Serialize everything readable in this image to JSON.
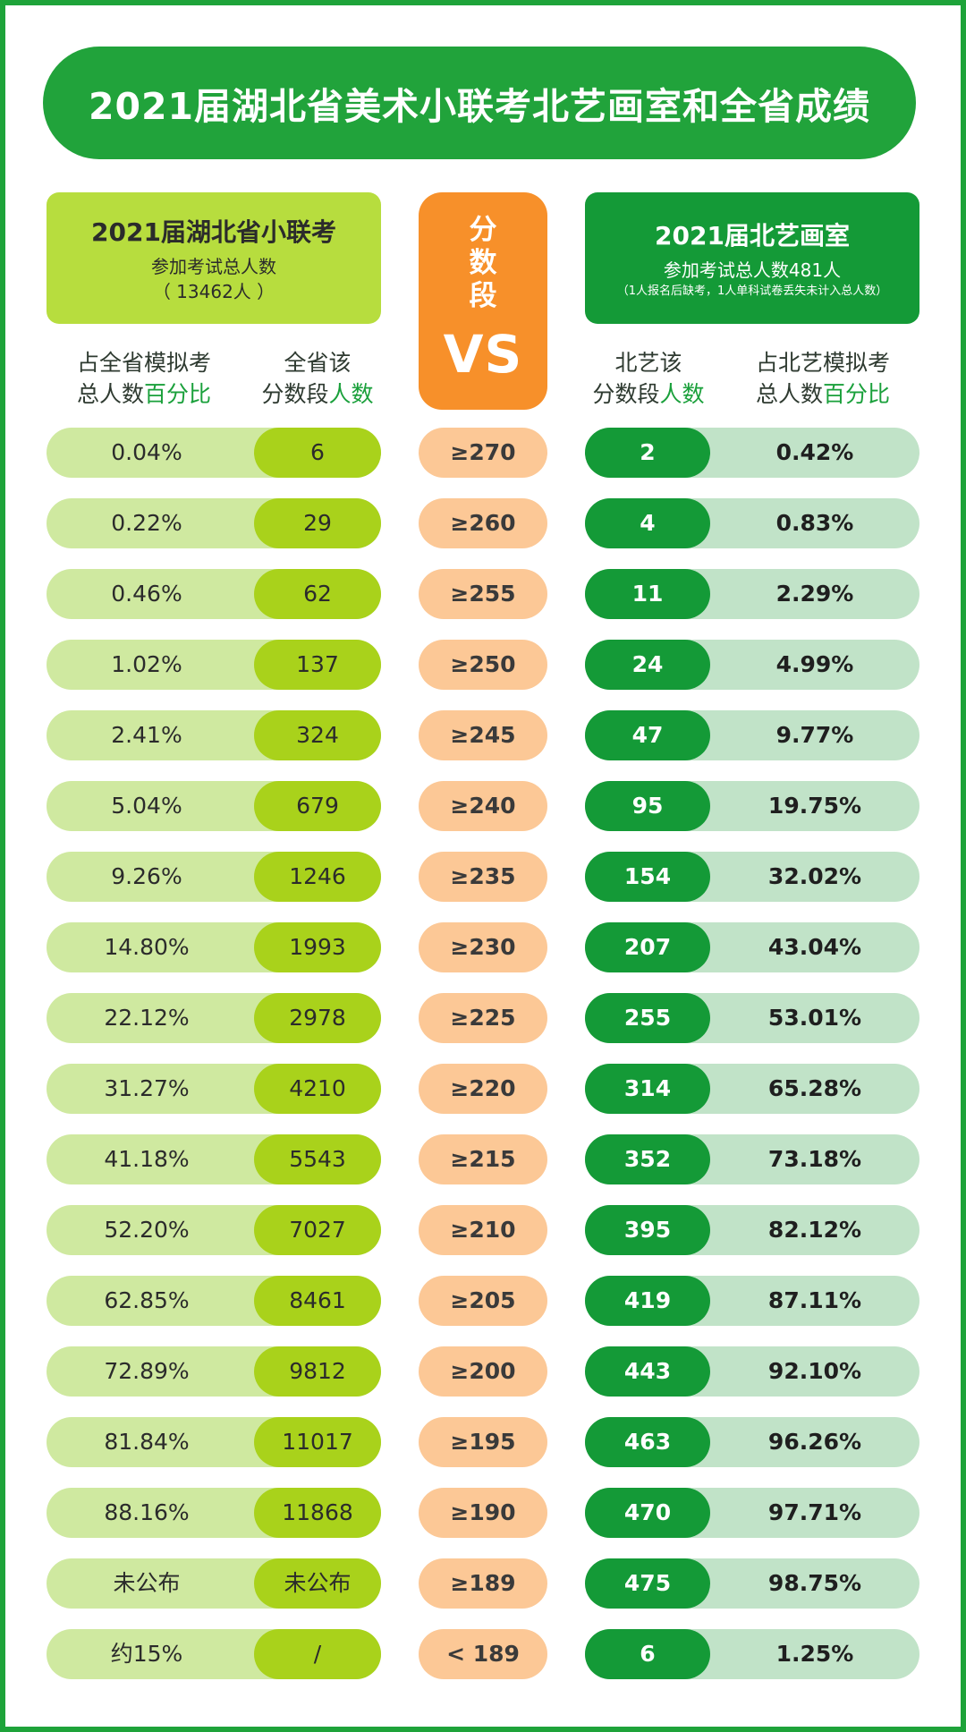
{
  "title": "2021届湖北省美术小联考北艺画室和全省成绩",
  "left_header": {
    "title": "2021届湖北省小联考",
    "subtitle": "参加考试总人数",
    "total": "（ 13462人 ）"
  },
  "middle_header": {
    "label": "分数段",
    "vs": "VS"
  },
  "right_header": {
    "title": "2021届北艺画室",
    "subtitle": "参加考试总人数481人",
    "note": "（1人报名后缺考，1人单科试卷丢失未计入总人数）"
  },
  "columns": {
    "left_pct": {
      "line1": "占全省模拟考",
      "line2a": "总人数",
      "line2b": "百分比"
    },
    "left_cnt": {
      "line1": "全省该",
      "line2a": "分数段",
      "line2b": "人数"
    },
    "right_cnt": {
      "line1": "北艺该",
      "line2a": "分数段",
      "line2b": "人数"
    },
    "right_pct": {
      "line1": "占北艺模拟考",
      "line2a": "总人数",
      "line2b": "百分比"
    }
  },
  "rows": [
    {
      "prov_pct": "0.04%",
      "prov_count": "6",
      "range": "≥270",
      "beiyi_count": "2",
      "beiyi_pct": "0.42%"
    },
    {
      "prov_pct": "0.22%",
      "prov_count": "29",
      "range": "≥260",
      "beiyi_count": "4",
      "beiyi_pct": "0.83%"
    },
    {
      "prov_pct": "0.46%",
      "prov_count": "62",
      "range": "≥255",
      "beiyi_count": "11",
      "beiyi_pct": "2.29%"
    },
    {
      "prov_pct": "1.02%",
      "prov_count": "137",
      "range": "≥250",
      "beiyi_count": "24",
      "beiyi_pct": "4.99%"
    },
    {
      "prov_pct": "2.41%",
      "prov_count": "324",
      "range": "≥245",
      "beiyi_count": "47",
      "beiyi_pct": "9.77%"
    },
    {
      "prov_pct": "5.04%",
      "prov_count": "679",
      "range": "≥240",
      "beiyi_count": "95",
      "beiyi_pct": "19.75%"
    },
    {
      "prov_pct": "9.26%",
      "prov_count": "1246",
      "range": "≥235",
      "beiyi_count": "154",
      "beiyi_pct": "32.02%"
    },
    {
      "prov_pct": "14.80%",
      "prov_count": "1993",
      "range": "≥230",
      "beiyi_count": "207",
      "beiyi_pct": "43.04%"
    },
    {
      "prov_pct": "22.12%",
      "prov_count": "2978",
      "range": "≥225",
      "beiyi_count": "255",
      "beiyi_pct": "53.01%"
    },
    {
      "prov_pct": "31.27%",
      "prov_count": "4210",
      "range": "≥220",
      "beiyi_count": "314",
      "beiyi_pct": "65.28%"
    },
    {
      "prov_pct": "41.18%",
      "prov_count": "5543",
      "range": "≥215",
      "beiyi_count": "352",
      "beiyi_pct": "73.18%"
    },
    {
      "prov_pct": "52.20%",
      "prov_count": "7027",
      "range": "≥210",
      "beiyi_count": "395",
      "beiyi_pct": "82.12%"
    },
    {
      "prov_pct": "62.85%",
      "prov_count": "8461",
      "range": "≥205",
      "beiyi_count": "419",
      "beiyi_pct": "87.11%"
    },
    {
      "prov_pct": "72.89%",
      "prov_count": "9812",
      "range": "≥200",
      "beiyi_count": "443",
      "beiyi_pct": "92.10%"
    },
    {
      "prov_pct": "81.84%",
      "prov_count": "11017",
      "range": "≥195",
      "beiyi_count": "463",
      "beiyi_pct": "96.26%"
    },
    {
      "prov_pct": "88.16%",
      "prov_count": "11868",
      "range": "≥190",
      "beiyi_count": "470",
      "beiyi_pct": "97.71%"
    },
    {
      "prov_pct": "未公布",
      "prov_count": "未公布",
      "range": "≥189",
      "beiyi_count": "475",
      "beiyi_pct": "98.75%"
    },
    {
      "prov_pct": "约15%",
      "prov_count": "/",
      "range": "< 189",
      "beiyi_count": "6",
      "beiyi_pct": "1.25%"
    }
  ]
}
